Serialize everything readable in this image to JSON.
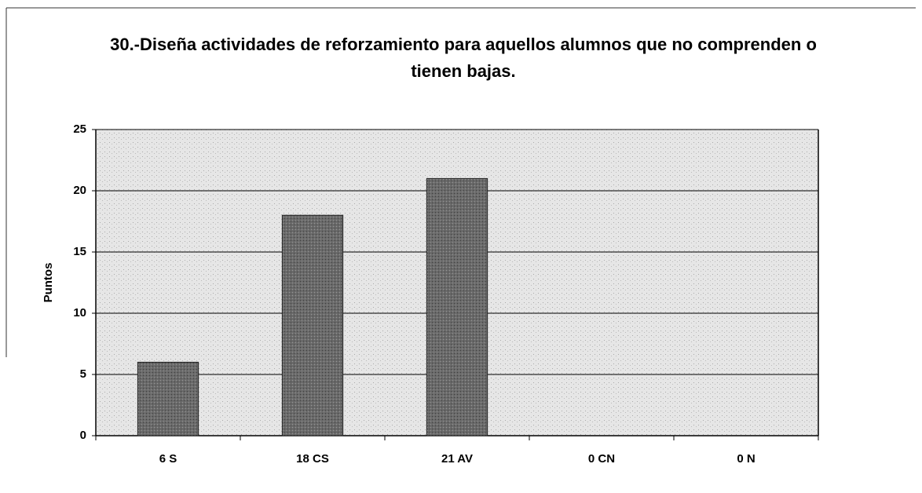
{
  "chart_data": {
    "type": "bar",
    "title": "30.-Diseña actividades de reforzamiento para aquellos alumnos que no comprenden o tienen bajas.",
    "y_label": "Puntos",
    "categories": [
      "6 S",
      "18 CS",
      "21 AV",
      "0 CN",
      "0 N"
    ],
    "values": [
      6,
      18,
      21,
      0,
      0
    ],
    "color": "#5a5a5a",
    "ylim": [
      0,
      25
    ],
    "yticks": [
      0,
      5,
      10,
      15,
      20,
      25
    ],
    "grid": true
  }
}
